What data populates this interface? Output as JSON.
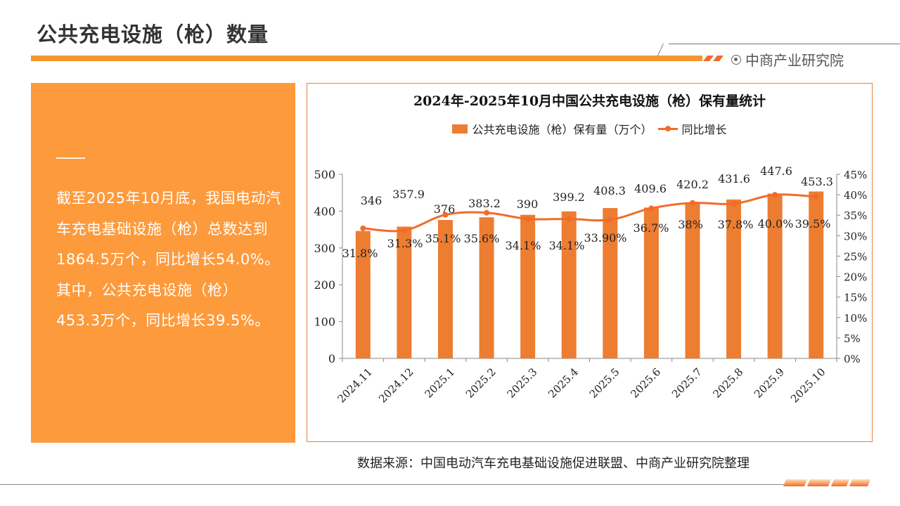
{
  "header": {
    "title": "公共充电设施（枪）数量",
    "brand": "中商产业研究院",
    "brand_icon": "target-circle-icon",
    "accent_color": "#f7962e"
  },
  "summary": {
    "text": "截至2025年10月底，我国电动汽车充电基础设施（枪）总数达到1864.5万个，同比增长54.0%。其中，公共充电设施（枪）453.3万个，同比增长39.5%。",
    "panel_color": "#fd9a3c"
  },
  "source": "数据来源：中国电动汽车充电基础设施促进联盟、中商产业研究院整理",
  "chart_data": {
    "type": "bar",
    "title": "2024年-2025年10月中国公共充电设施（枪）保有量统计",
    "categories": [
      "2024.11",
      "2024.12",
      "2025.1",
      "2025.2",
      "2025.3",
      "2025.4",
      "2025.5",
      "2025.6",
      "2025.7",
      "2025.8",
      "2025.9",
      "2025.10"
    ],
    "series": [
      {
        "name": "公共充电设施（枪）保有量（万个）",
        "type": "bar",
        "axis": "left",
        "color": "#ed7d31",
        "values": [
          346,
          357.9,
          376,
          383.2,
          390,
          399.2,
          408.3,
          409.6,
          420.2,
          431.6,
          447.6,
          453.3
        ],
        "labels": [
          "346",
          "357.9",
          "376",
          "383.2",
          "390",
          "399.2",
          "408.3",
          "409.6",
          "420.2",
          "431.6",
          "447.6",
          "453.3"
        ]
      },
      {
        "name": "同比增长",
        "type": "line",
        "axis": "right",
        "color": "#f26b2a",
        "values": [
          31.8,
          31.3,
          35.1,
          35.6,
          34.1,
          34.1,
          33.9,
          36.7,
          38,
          37.8,
          40.0,
          39.5
        ],
        "labels": [
          "31.8%",
          "31.3%",
          "35.1%",
          "35.6%",
          "34.1%",
          "34.1%",
          "33.90%",
          "36.7%",
          "38%",
          "37.8%",
          "40.0%",
          "39.5%"
        ]
      }
    ],
    "y_left": {
      "ylim": [
        0,
        500
      ],
      "ticks": [
        "0",
        "100",
        "200",
        "300",
        "400",
        "500"
      ]
    },
    "y_right": {
      "ylim": [
        0,
        45
      ],
      "ticks": [
        "0%",
        "5%",
        "10%",
        "15%",
        "20%",
        "25%",
        "30%",
        "35%",
        "40%",
        "45%"
      ]
    },
    "legend_position": "top-center",
    "grid": false
  }
}
